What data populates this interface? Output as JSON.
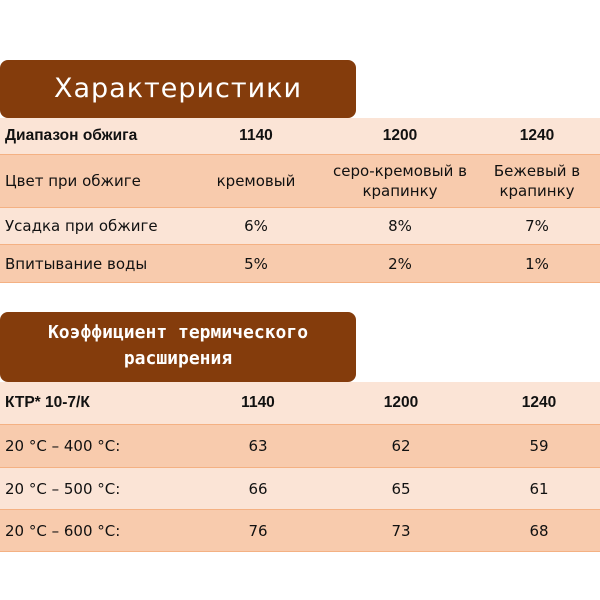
{
  "colors": {
    "banner": "#843c0c",
    "row_light": "#fbe4d6",
    "row_dark": "#f8cbad",
    "border": "#f4b183"
  },
  "table1": {
    "title": "Характеристики",
    "header": [
      "Диапазон обжига",
      "1140",
      "1200",
      "1240"
    ],
    "rows": [
      [
        "Цвет при обжиге",
        "кремовый",
        "серо-кремовый в\nкрапинку",
        "Бежевый в\nкрапинку"
      ],
      [
        "Усадка при обжиге",
        "6%",
        "8%",
        "7%"
      ],
      [
        "Впитывание воды",
        "5%",
        "2%",
        "1%"
      ]
    ]
  },
  "table2": {
    "title_line1": "Коэффициент термического",
    "title_line2": "расширения",
    "header": [
      "КТР* 10-7/К",
      "1140",
      "1200",
      "1240"
    ],
    "rows": [
      [
        "20 °C – 400 °C:",
        "63",
        "62",
        "59"
      ],
      [
        "20 °C – 500 °C:",
        "66",
        "65",
        "61"
      ],
      [
        "20 °C – 600 °C:",
        "76",
        "73",
        "68"
      ]
    ]
  }
}
